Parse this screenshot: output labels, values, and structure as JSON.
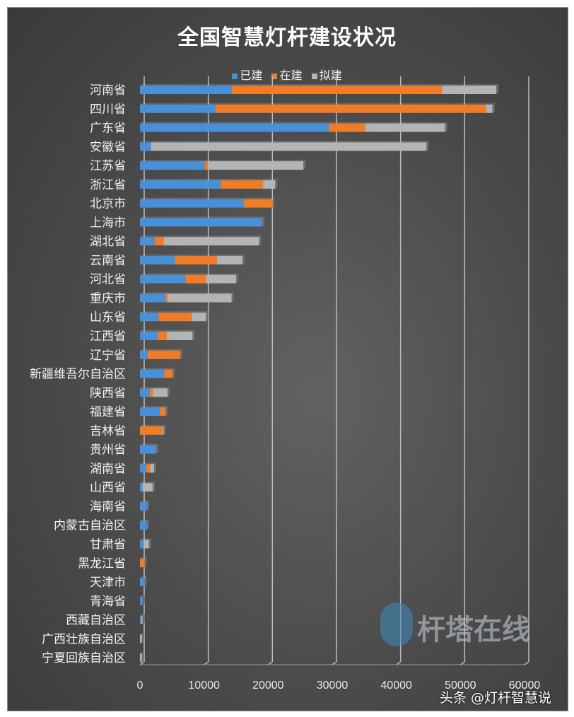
{
  "chart_data": {
    "type": "bar",
    "orientation": "horizontal",
    "stacked": true,
    "title": "全国智慧灯杆建设状况",
    "legend_position": "top",
    "grid": true,
    "xlim": [
      0,
      60000
    ],
    "xticks": [
      0,
      10000,
      20000,
      30000,
      40000,
      50000,
      60000
    ],
    "categories": [
      "河南省",
      "四川省",
      "广东省",
      "安徽省",
      "江苏省",
      "浙江省",
      "北京市",
      "上海市",
      "湖北省",
      "云南省",
      "河北省",
      "重庆市",
      "山东省",
      "江西省",
      "辽宁省",
      "新疆维吾尔自治区",
      "陕西省",
      "福建省",
      "吉林省",
      "贵州省",
      "湖南省",
      "山西省",
      "海南省",
      "内蒙古自治区",
      "甘肃省",
      "黑龙江省",
      "天津市",
      "青海省",
      "西藏自治区",
      "广西壮族自治区",
      "宁夏回族自治区"
    ],
    "series": [
      {
        "name": "已建",
        "color": "#4a90d9",
        "values": [
          14300,
          11800,
          29500,
          1700,
          10100,
          12600,
          16200,
          19100,
          2300,
          5500,
          7100,
          4000,
          2900,
          2800,
          1200,
          3800,
          1500,
          3100,
          0,
          2500,
          1000,
          400,
          1100,
          1100,
          600,
          0,
          700,
          400,
          200,
          0,
          0
        ]
      },
      {
        "name": "在建",
        "color": "#f07c28",
        "values": [
          32800,
          42200,
          5600,
          0,
          500,
          6600,
          4500,
          0,
          1400,
          6500,
          3200,
          300,
          5200,
          1400,
          5100,
          1300,
          500,
          900,
          3500,
          0,
          600,
          0,
          0,
          0,
          0,
          700,
          0,
          0,
          0,
          0,
          0
        ]
      },
      {
        "name": "拟建",
        "color": "#b4b4b4",
        "values": [
          8500,
          1000,
          12500,
          43000,
          14900,
          1900,
          0,
          0,
          14900,
          4000,
          4700,
          10000,
          2200,
          4000,
          0,
          0,
          2300,
          0,
          200,
          0,
          600,
          1600,
          0,
          0,
          800,
          0,
          0,
          0,
          200,
          300,
          300
        ]
      }
    ]
  },
  "watermark": "杆塔在线",
  "footer": "头条 @灯杆智慧说"
}
